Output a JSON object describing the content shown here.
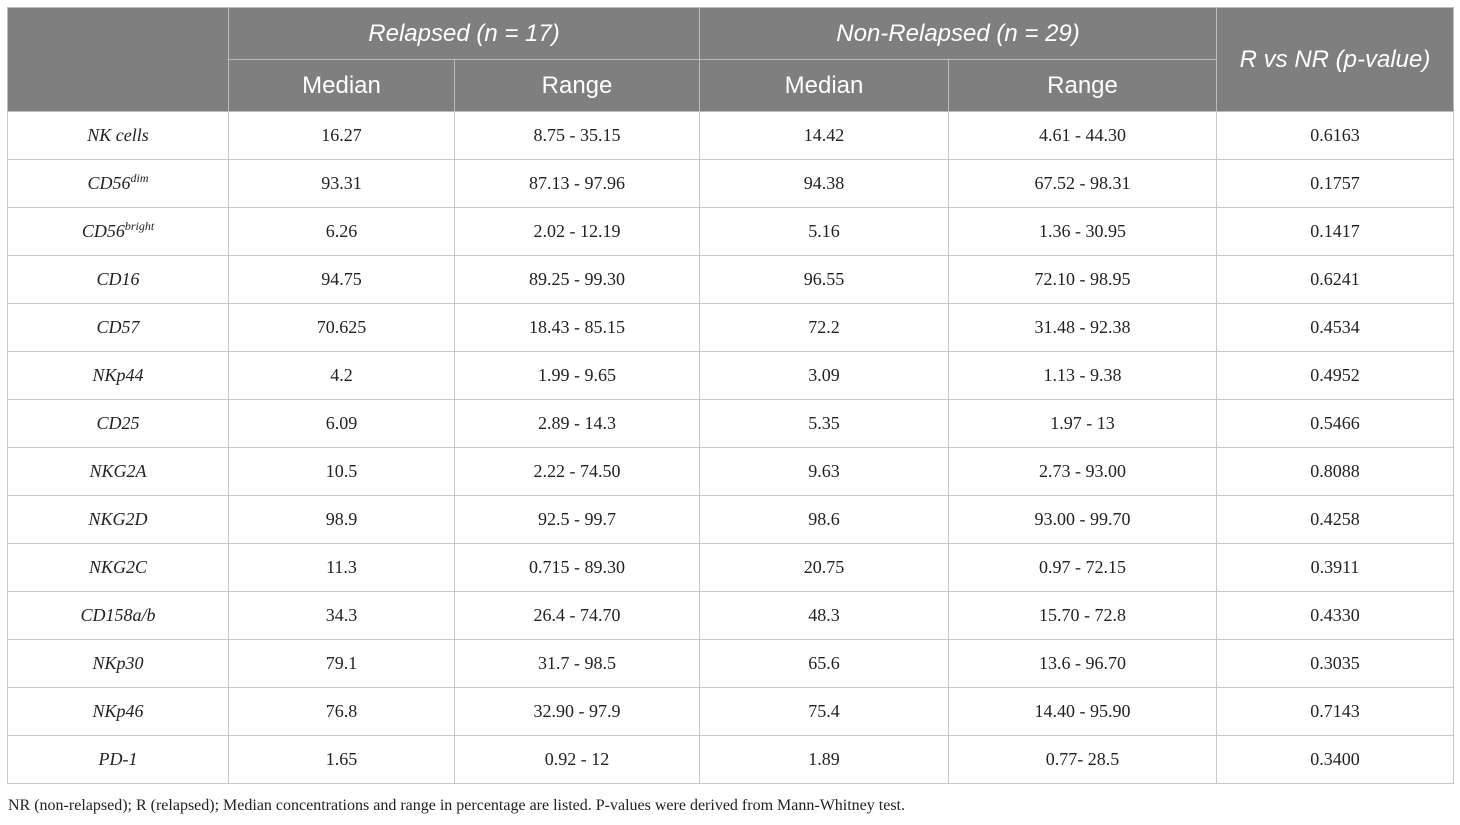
{
  "header": {
    "group_relapsed": "Relapsed (n = 17)",
    "group_nonrelapsed": "Non-Relapsed (n = 29)",
    "pvalue_col": "R vs NR (p-value)",
    "median": "Median",
    "range": "Range"
  },
  "rows": [
    {
      "marker": "NK cells",
      "sup": "",
      "r_median": "16.27",
      "r_range": "8.75 - 35.15",
      "nr_median": "14.42",
      "nr_range": "4.61 - 44.30",
      "p": "0.6163"
    },
    {
      "marker": "CD56",
      "sup": "dim",
      "r_median": "93.31",
      "r_range": "87.13 - 97.96",
      "nr_median": "94.38",
      "nr_range": "67.52 - 98.31",
      "p": "0.1757"
    },
    {
      "marker": "CD56",
      "sup": "bright",
      "r_median": "6.26",
      "r_range": "2.02 - 12.19",
      "nr_median": "5.16",
      "nr_range": "1.36 - 30.95",
      "p": "0.1417"
    },
    {
      "marker": "CD16",
      "sup": "",
      "r_median": "94.75",
      "r_range": "89.25 - 99.30",
      "nr_median": "96.55",
      "nr_range": "72.10 - 98.95",
      "p": "0.6241"
    },
    {
      "marker": "CD57",
      "sup": "",
      "r_median": "70.625",
      "r_range": "18.43 - 85.15",
      "nr_median": "72.2",
      "nr_range": "31.48 - 92.38",
      "p": "0.4534"
    },
    {
      "marker": "NKp44",
      "sup": "",
      "r_median": "4.2",
      "r_range": "1.99 - 9.65",
      "nr_median": "3.09",
      "nr_range": "1.13 - 9.38",
      "p": "0.4952"
    },
    {
      "marker": "CD25",
      "sup": "",
      "r_median": "6.09",
      "r_range": "2.89 - 14.3",
      "nr_median": "5.35",
      "nr_range": "1.97 - 13",
      "p": "0.5466"
    },
    {
      "marker": "NKG2A",
      "sup": "",
      "r_median": "10.5",
      "r_range": "2.22 - 74.50",
      "nr_median": "9.63",
      "nr_range": "2.73 - 93.00",
      "p": "0.8088"
    },
    {
      "marker": "NKG2D",
      "sup": "",
      "r_median": "98.9",
      "r_range": "92.5 - 99.7",
      "nr_median": "98.6",
      "nr_range": "93.00 - 99.70",
      "p": "0.4258"
    },
    {
      "marker": "NKG2C",
      "sup": "",
      "r_median": "11.3",
      "r_range": "0.715 - 89.30",
      "nr_median": "20.75",
      "nr_range": "0.97 - 72.15",
      "p": "0.3911"
    },
    {
      "marker": "CD158a/b",
      "sup": "",
      "r_median": "34.3",
      "r_range": "26.4 - 74.70",
      "nr_median": "48.3",
      "nr_range": "15.70 - 72.8",
      "p": "0.4330"
    },
    {
      "marker": "NKp30",
      "sup": "",
      "r_median": "79.1",
      "r_range": "31.7 - 98.5",
      "nr_median": "65.6",
      "nr_range": "13.6 - 96.70",
      "p": "0.3035"
    },
    {
      "marker": "NKp46",
      "sup": "",
      "r_median": "76.8",
      "r_range": "32.90 - 97.9",
      "nr_median": "75.4",
      "nr_range": "14.40 - 95.90",
      "p": "0.7143"
    },
    {
      "marker": "PD-1",
      "sup": "",
      "r_median": "1.65",
      "r_range": "0.92 - 12",
      "nr_median": "1.89",
      "nr_range": "0.77- 28.5",
      "p": "0.3400"
    }
  ],
  "footnote": "NR (non-relapsed); R (relapsed); Median concentrations and range in percentage are listed. P-values were derived from Mann-Whitney test."
}
